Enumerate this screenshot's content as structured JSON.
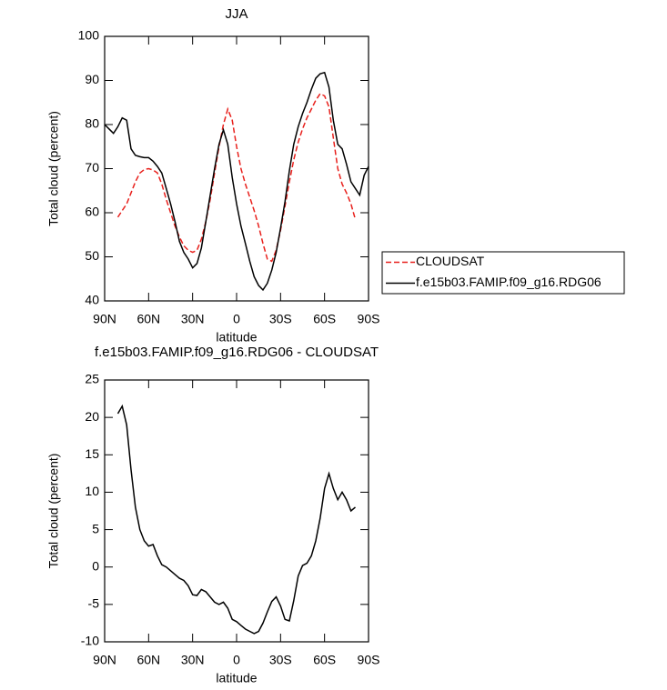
{
  "chart_data": [
    {
      "type": "line",
      "title": "JJA",
      "xlabel": "latitude",
      "ylabel": "Total cloud (percent)",
      "x": [
        90,
        87,
        84,
        81,
        78,
        75,
        72,
        69,
        66,
        63,
        60,
        57,
        54,
        51,
        48,
        45,
        42,
        39,
        36,
        33,
        30,
        27,
        24,
        21,
        18,
        15,
        12,
        9,
        6,
        3,
        0,
        -3,
        -6,
        -9,
        -12,
        -15,
        -18,
        -21,
        -24,
        -27,
        -30,
        -33,
        -36,
        -39,
        -42,
        -45,
        -48,
        -51,
        -54,
        -57,
        -60,
        -63,
        -66,
        -69,
        -72,
        -75,
        -78,
        -81,
        -84,
        -87,
        -90
      ],
      "series": [
        {
          "name": "CLOUDSAT",
          "color": "#e8201c",
          "style": "dashed",
          "values": [
            null,
            null,
            null,
            59,
            60.5,
            62,
            64.5,
            67,
            69,
            69.8,
            70,
            69.7,
            69,
            66.5,
            63,
            60,
            57,
            54.5,
            52.5,
            51.5,
            51,
            51.5,
            54,
            58,
            63,
            69,
            75,
            80,
            83.5,
            81,
            75,
            70,
            66.5,
            63.5,
            60.5,
            57,
            53,
            49.5,
            49,
            51.5,
            56,
            61.5,
            67,
            72,
            76,
            79,
            81.5,
            83.5,
            85.5,
            87,
            86.5,
            84,
            77,
            70,
            66.5,
            64.5,
            62,
            58.5,
            null,
            null,
            null
          ]
        },
        {
          "name": "f.e15b03.FAMIP.f09_g16.RDG06",
          "color": "#000000",
          "style": "solid",
          "values": [
            80,
            79,
            78,
            79.5,
            81.5,
            81,
            74.5,
            73,
            72.7,
            72.5,
            72.5,
            71.7,
            70.5,
            69,
            65.5,
            62,
            58,
            53.5,
            51,
            49.5,
            47.5,
            48.5,
            52,
            58,
            64,
            70,
            75.5,
            78.8,
            75.5,
            68,
            62,
            57,
            53,
            49,
            45.5,
            43.5,
            42.5,
            44,
            47,
            51,
            56.5,
            62.5,
            69.5,
            75.5,
            79.5,
            82.5,
            85,
            88,
            90.5,
            91.5,
            91.8,
            88.5,
            81,
            75.5,
            74.5,
            71,
            67,
            65.5,
            64,
            68.5,
            70.5
          ]
        }
      ],
      "xlim": [
        90,
        -90
      ],
      "xticks": [
        {
          "value": 90,
          "label": "90N"
        },
        {
          "value": 60,
          "label": "60N"
        },
        {
          "value": 30,
          "label": "30N"
        },
        0,
        {
          "value": -30,
          "label": "30S"
        },
        {
          "value": -60,
          "label": "60S"
        },
        {
          "value": -90,
          "label": "90S"
        }
      ],
      "ylim": [
        40,
        100
      ],
      "yticks": [
        40,
        50,
        60,
        70,
        80,
        90,
        100
      ],
      "legend": "right"
    },
    {
      "type": "line",
      "title": "f.e15b03.FAMIP.f09_g16.RDG06 - CLOUDSAT",
      "xlabel": "latitude",
      "ylabel": "Total cloud (percent)",
      "x": [
        81,
        78,
        75,
        72,
        69,
        66,
        63,
        60,
        57,
        54,
        51,
        48,
        45,
        42,
        39,
        36,
        33,
        30,
        27,
        24,
        21,
        18,
        15,
        12,
        9,
        6,
        3,
        0,
        -3,
        -6,
        -9,
        -12,
        -15,
        -18,
        -21,
        -24,
        -27,
        -30,
        -33,
        -36,
        -39,
        -42,
        -45,
        -48,
        -51,
        -54,
        -57,
        -60,
        -63,
        -66,
        -69,
        -72,
        -75,
        -78,
        -81
      ],
      "values": [
        20.5,
        21.5,
        19,
        13,
        8,
        5,
        3.5,
        2.8,
        3,
        1.5,
        0.3,
        0,
        -0.5,
        -1,
        -1.5,
        -1.8,
        -2.5,
        -3.7,
        -3.8,
        -3,
        -3.3,
        -4,
        -4.7,
        -5,
        -4.7,
        -5.5,
        -7,
        -7.3,
        -7.8,
        -8.3,
        -8.6,
        -8.9,
        -8.6,
        -7.5,
        -6,
        -4.6,
        -4,
        -5.2,
        -7,
        -7.2,
        -4.5,
        -1.2,
        0.2,
        0.5,
        1.5,
        3.5,
        6.5,
        10.5,
        12.5,
        10.5,
        9,
        10,
        9,
        7.5,
        8
      ],
      "color": "#000000",
      "xlim": [
        90,
        -90
      ],
      "xticks": [
        {
          "value": 90,
          "label": "90N"
        },
        {
          "value": 60,
          "label": "60N"
        },
        {
          "value": 30,
          "label": "30N"
        },
        0,
        {
          "value": -30,
          "label": "30S"
        },
        {
          "value": -60,
          "label": "60S"
        },
        {
          "value": -90,
          "label": "90S"
        }
      ],
      "ylim": [
        -10,
        25
      ],
      "yticks": [
        -10,
        -5,
        0,
        5,
        10,
        15,
        20,
        25
      ]
    }
  ]
}
